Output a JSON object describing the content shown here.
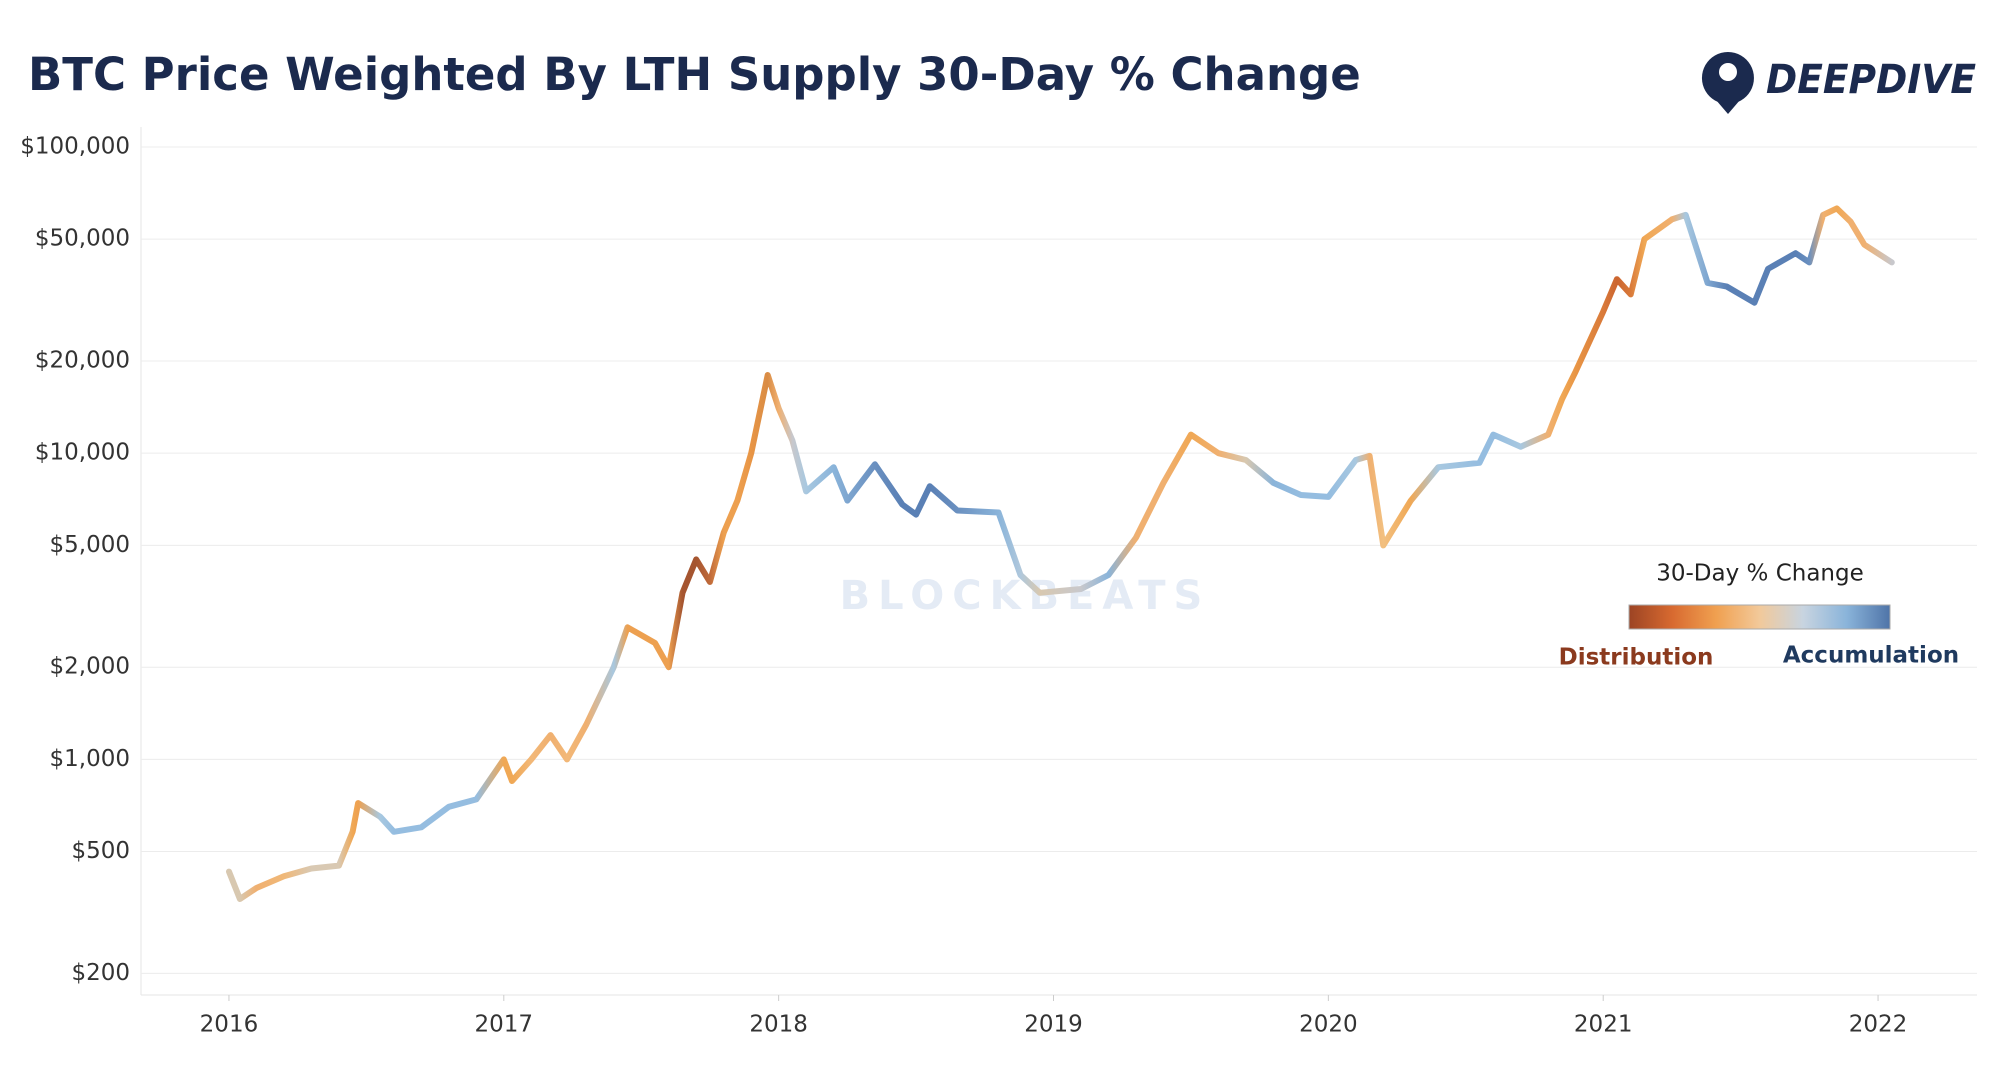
{
  "chart_data": {
    "type": "line",
    "title": "BTC Price Weighted By LTH Supply 30-Day % Change",
    "brand": "DEEPDIVE",
    "watermark": "BLOCKBEATS",
    "log_scale": true,
    "grid": true,
    "xlim": [
      2015.68,
      2022.36
    ],
    "xticks": [
      2016,
      2017,
      2018,
      2019,
      2020,
      2021,
      2022
    ],
    "ylim": [
      170,
      100000
    ],
    "yticks": [
      {
        "value": 200,
        "label": "$200"
      },
      {
        "value": 500,
        "label": "$500"
      },
      {
        "value": 1000,
        "label": "$1,000"
      },
      {
        "value": 2000,
        "label": "$2,000"
      },
      {
        "value": 5000,
        "label": "$5,000"
      },
      {
        "value": 10000,
        "label": "$10,000"
      },
      {
        "value": 20000,
        "label": "$20,000"
      },
      {
        "value": 50000,
        "label": "$50,000"
      },
      {
        "value": 100000,
        "label": "$100,000"
      }
    ],
    "x": [
      2016.0,
      2016.04,
      2016.1,
      2016.2,
      2016.3,
      2016.4,
      2016.45,
      2016.47,
      2016.55,
      2016.6,
      2016.7,
      2016.8,
      2016.9,
      2017.0,
      2017.03,
      2017.1,
      2017.17,
      2017.23,
      2017.3,
      2017.4,
      2017.45,
      2017.55,
      2017.6,
      2017.65,
      2017.7,
      2017.75,
      2017.8,
      2017.85,
      2017.9,
      2017.96,
      2018.0,
      2018.05,
      2018.1,
      2018.2,
      2018.25,
      2018.35,
      2018.45,
      2018.5,
      2018.55,
      2018.65,
      2018.8,
      2018.88,
      2018.95,
      2019.1,
      2019.2,
      2019.3,
      2019.4,
      2019.5,
      2019.6,
      2019.7,
      2019.8,
      2019.9,
      2020.0,
      2020.1,
      2020.15,
      2020.2,
      2020.3,
      2020.4,
      2020.55,
      2020.6,
      2020.7,
      2020.8,
      2020.85,
      2020.9,
      2021.0,
      2021.05,
      2021.1,
      2021.15,
      2021.25,
      2021.3,
      2021.38,
      2021.45,
      2021.55,
      2021.6,
      2021.7,
      2021.75,
      2021.8,
      2021.85,
      2021.9,
      2021.95,
      2022.05
    ],
    "series": [
      {
        "values": [
          430,
          350,
          380,
          415,
          440,
          450,
          580,
          720,
          650,
          580,
          600,
          700,
          740,
          1000,
          850,
          1000,
          1200,
          1000,
          1300,
          2000,
          2700,
          2400,
          2000,
          3500,
          4500,
          3800,
          5500,
          7000,
          10000,
          18000,
          14000,
          11000,
          7500,
          9000,
          7000,
          9200,
          6800,
          6300,
          7800,
          6500,
          6400,
          4000,
          3500,
          3600,
          4000,
          5300,
          8000,
          11500,
          10000,
          9500,
          8000,
          7300,
          7200,
          9500,
          9800,
          5000,
          7000,
          9000,
          9300,
          11500,
          10500,
          11500,
          15000,
          18500,
          29000,
          37000,
          33000,
          50000,
          58000,
          60000,
          36000,
          35000,
          31000,
          40000,
          45000,
          42000,
          60000,
          63000,
          57000,
          48000,
          42000
        ],
        "point_colors": [
          "#d8c8b0",
          "#d8c8b0",
          "#f0b070",
          "#f0b878",
          "#d9c9b3",
          "#d9c9b3",
          "#f0a855",
          "#eda050",
          "#a8c8e0",
          "#95bde0",
          "#95bde0",
          "#95bde0",
          "#95bde0",
          "#f0a855",
          "#f0a855",
          "#f2b878",
          "#f0b070",
          "#f2b878",
          "#f0b070",
          "#a8c8e0",
          "#eda050",
          "#eda050",
          "#eda050",
          "#a55530",
          "#a55530",
          "#c06a3a",
          "#eda050",
          "#eda050",
          "#e89545",
          "#d98c45",
          "#f0b070",
          "#c8c8cc",
          "#a8c8e0",
          "#8ab4da",
          "#7ea6d0",
          "#6a90c0",
          "#5a80b5",
          "#5a80b5",
          "#5a80b5",
          "#6a90c0",
          "#8ab4da",
          "#b0c8dc",
          "#d8c8b0",
          "#c8c8cc",
          "#8ab4da",
          "#f0b070",
          "#f0b070",
          "#f0a855",
          "#f0b070",
          "#d8c8b0",
          "#8ab4da",
          "#95bde0",
          "#95bde0",
          "#a8c8e0",
          "#f0b070",
          "#f2c080",
          "#f0a855",
          "#a8c8e0",
          "#95bde0",
          "#95bde0",
          "#a8c8e0",
          "#f0b070",
          "#f0a855",
          "#e89545",
          "#d97a3a",
          "#cc6530",
          "#d97a3a",
          "#f0a855",
          "#f0b070",
          "#a8c8e0",
          "#7ea6d0",
          "#5a80b5",
          "#5a80b5",
          "#5a80b5",
          "#5a80b5",
          "#6a90c0",
          "#f0b070",
          "#f0a855",
          "#f0b070",
          "#f0b070",
          "#c8c8cc"
        ]
      }
    ],
    "legend": {
      "title": "30-Day % Change",
      "low_label": "Distribution",
      "high_label": "Accumulation",
      "colors": [
        "#9c4424",
        "#d86a30",
        "#f0a050",
        "#f2c99a",
        "#c8d4e0",
        "#8ab4da",
        "#4f74a8"
      ]
    }
  }
}
